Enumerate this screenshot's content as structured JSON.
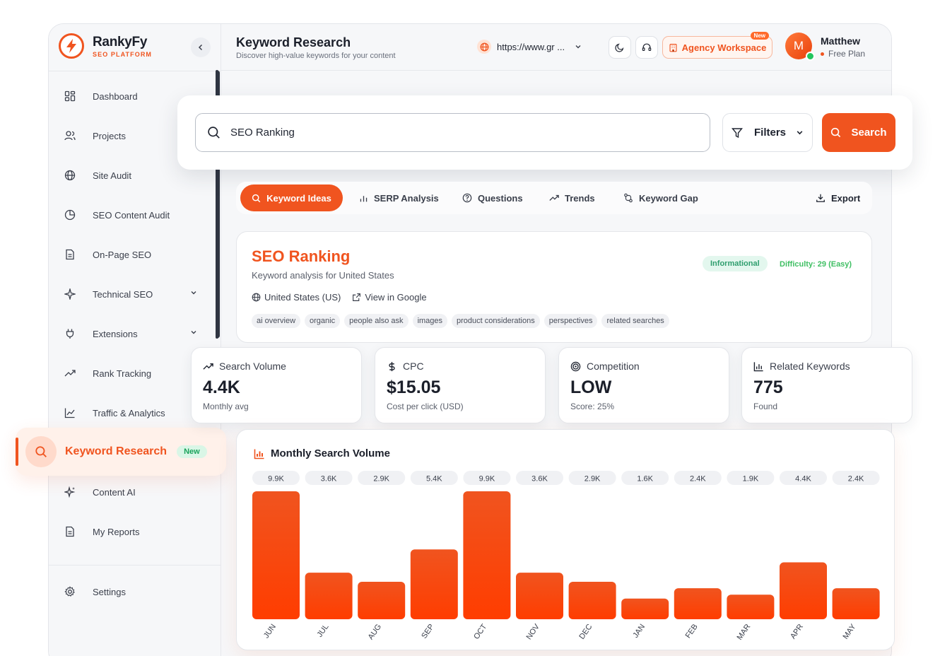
{
  "brand": {
    "name": "RankyFy",
    "subtitle": "SEO PLATFORM"
  },
  "sidebar": {
    "items": [
      {
        "label": "Dashboard",
        "icon": "grid-icon"
      },
      {
        "label": "Projects",
        "icon": "users-icon"
      },
      {
        "label": "Site Audit",
        "icon": "globe-icon"
      },
      {
        "label": "SEO Content Audit",
        "icon": "pie-icon"
      },
      {
        "label": "On-Page SEO",
        "icon": "document-icon"
      },
      {
        "label": "Technical SEO",
        "icon": "sparkle-icon",
        "expandable": true
      },
      {
        "label": "Extensions",
        "icon": "plug-icon",
        "expandable": true
      },
      {
        "label": "Rank Tracking",
        "icon": "trend-icon"
      },
      {
        "label": "Traffic & Analytics",
        "icon": "line-chart-icon"
      },
      {
        "label": "Keyword Research",
        "icon": "search-icon",
        "active": true,
        "badge": "New"
      },
      {
        "label": "Content AI",
        "icon": "sparkle-icon"
      },
      {
        "label": "My Reports",
        "icon": "document-icon"
      }
    ],
    "settings_label": "Settings"
  },
  "header": {
    "title": "Keyword Research",
    "subtitle": "Discover high-value keywords for your content",
    "url": "https://www.gr ...",
    "agency_label": "Agency Workspace",
    "agency_badge": "New",
    "user_initial": "M",
    "user_name": "Matthew",
    "user_plan": "Free Plan"
  },
  "search": {
    "value": "SEO Ranking",
    "filters_label": "Filters",
    "search_label": "Search"
  },
  "tabs": [
    {
      "label": "Keyword Ideas",
      "active": true
    },
    {
      "label": "SERP Analysis"
    },
    {
      "label": "Questions"
    },
    {
      "label": "Trends"
    },
    {
      "label": "Keyword Gap"
    }
  ],
  "export_label": "Export",
  "keyword": {
    "title": "SEO Ranking",
    "subtitle": "Keyword analysis for United States",
    "location": "United States (US)",
    "view_google": "View in Google",
    "intent": "Informational",
    "difficulty": "Difficulty: 29 (Easy)",
    "serp_features": [
      "ai overview",
      "organic",
      "people also ask",
      "images",
      "product considerations",
      "perspectives",
      "related searches"
    ]
  },
  "metrics": [
    {
      "label": "Search Volume",
      "value": "4.4K",
      "note": "Monthly avg",
      "icon": "trend-up-icon"
    },
    {
      "label": "CPC",
      "value": "$15.05",
      "note": "Cost per click (USD)",
      "icon": "dollar-icon"
    },
    {
      "label": "Competition",
      "value": "LOW",
      "note": "Score: 25%",
      "icon": "target-icon"
    },
    {
      "label": "Related Keywords",
      "value": "775",
      "note": "Found",
      "icon": "bar-chart-icon"
    }
  ],
  "chart_data": {
    "type": "bar",
    "title": "Monthly Search Volume",
    "categories": [
      "JUN",
      "JUL",
      "AUG",
      "SEP",
      "OCT",
      "NOV",
      "DEC",
      "JAN",
      "FEB",
      "MAR",
      "APR",
      "MAY"
    ],
    "values": [
      9900,
      3600,
      2900,
      5400,
      9900,
      3600,
      2900,
      1600,
      2400,
      1900,
      4400,
      2400
    ],
    "labels": [
      "9.9K",
      "3.6K",
      "2.9K",
      "5.4K",
      "9.9K",
      "3.6K",
      "2.9K",
      "1.6K",
      "2.4K",
      "1.9K",
      "4.4K",
      "2.4K"
    ],
    "ylim": [
      0,
      9900
    ],
    "bar_color": "#f0541f"
  },
  "colors": {
    "accent": "#f0541f",
    "success": "#22c55e"
  }
}
